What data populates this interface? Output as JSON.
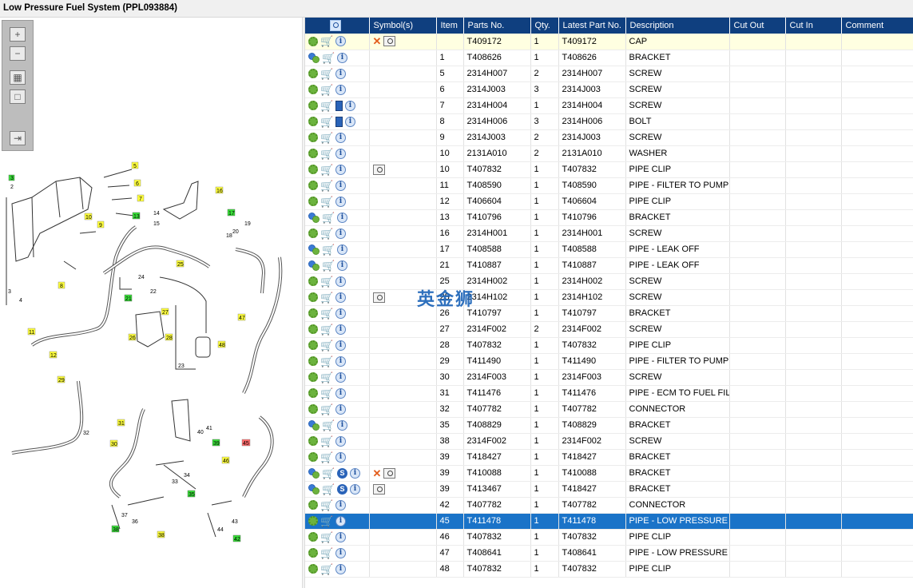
{
  "window": {
    "title": "Low Pressure Fuel System (PPL093884)"
  },
  "toolbar": {
    "icons": [
      "zoom-in-icon",
      "zoom-out-icon",
      "fit-all-icon",
      "fit-page-icon",
      "export-icon"
    ]
  },
  "watermark": {
    "text": "英金狮"
  },
  "diagram": {
    "callouts": [
      {
        "label": "3",
        "color": "green"
      },
      {
        "label": "2"
      },
      {
        "label": "3"
      },
      {
        "label": "4"
      },
      {
        "label": "5",
        "color": "yellow"
      },
      {
        "label": "6",
        "color": "yellow"
      },
      {
        "label": "7",
        "color": "yellow"
      },
      {
        "label": "8",
        "color": "yellow"
      },
      {
        "label": "9",
        "color": "yellow"
      },
      {
        "label": "10",
        "color": "yellow"
      },
      {
        "label": "11",
        "color": "yellow"
      },
      {
        "label": "12",
        "color": "yellow"
      },
      {
        "label": "13",
        "color": "green"
      },
      {
        "label": "14"
      },
      {
        "label": "15"
      },
      {
        "label": "16",
        "color": "yellow"
      },
      {
        "label": "17",
        "color": "green"
      },
      {
        "label": "18"
      },
      {
        "label": "19"
      },
      {
        "label": "20"
      },
      {
        "label": "21",
        "color": "green"
      },
      {
        "label": "22"
      },
      {
        "label": "23"
      },
      {
        "label": "24"
      },
      {
        "label": "25",
        "color": "yellow"
      },
      {
        "label": "26",
        "color": "yellow"
      },
      {
        "label": "27",
        "color": "yellow"
      },
      {
        "label": "28",
        "color": "yellow"
      },
      {
        "label": "29",
        "color": "yellow"
      },
      {
        "label": "30",
        "color": "yellow"
      },
      {
        "label": "31",
        "color": "yellow"
      },
      {
        "label": "32"
      },
      {
        "label": "33"
      },
      {
        "label": "34"
      },
      {
        "label": "35",
        "color": "green"
      },
      {
        "label": "36"
      },
      {
        "label": "37"
      },
      {
        "label": "38",
        "color": "yellow"
      },
      {
        "label": "39",
        "color": "green"
      },
      {
        "label": "40"
      },
      {
        "label": "41"
      },
      {
        "label": "42",
        "color": "green"
      },
      {
        "label": "43"
      },
      {
        "label": "44"
      },
      {
        "label": "45",
        "color": "red"
      },
      {
        "label": "46",
        "color": "yellow"
      },
      {
        "label": "47",
        "color": "yellow"
      },
      {
        "label": "48",
        "color": "yellow"
      },
      {
        "label": "38",
        "color": "green"
      }
    ]
  },
  "table": {
    "columns": [
      "",
      "Symbol(s)",
      "Item",
      "Parts No.",
      "Qty.",
      "Latest Part No.",
      "Description",
      "Cut Out",
      "Cut In",
      "Comment"
    ],
    "rows": [
      {
        "icons": [
          "gear",
          "cart",
          "info"
        ],
        "symbols": [
          "x",
          "mag"
        ],
        "item": "",
        "part": "T409172",
        "qty": "1",
        "latest": "T409172",
        "desc": "CAP",
        "state": "hl"
      },
      {
        "icons": [
          "gear2",
          "cart",
          "info"
        ],
        "symbols": [],
        "item": "1",
        "part": "T408626",
        "qty": "1",
        "latest": "T408626",
        "desc": "BRACKET"
      },
      {
        "icons": [
          "gear",
          "cart",
          "info"
        ],
        "symbols": [],
        "item": "5",
        "part": "2314H007",
        "qty": "2",
        "latest": "2314H007",
        "desc": "SCREW"
      },
      {
        "icons": [
          "gear",
          "cart",
          "info"
        ],
        "symbols": [],
        "item": "6",
        "part": "2314J003",
        "qty": "3",
        "latest": "2314J003",
        "desc": "SCREW"
      },
      {
        "icons": [
          "gear",
          "cart",
          "book",
          "info"
        ],
        "symbols": [],
        "item": "7",
        "part": "2314H004",
        "qty": "1",
        "latest": "2314H004",
        "desc": "SCREW"
      },
      {
        "icons": [
          "gear",
          "cart",
          "book",
          "info"
        ],
        "symbols": [],
        "item": "8",
        "part": "2314H006",
        "qty": "3",
        "latest": "2314H006",
        "desc": "BOLT"
      },
      {
        "icons": [
          "gear",
          "cart",
          "info"
        ],
        "symbols": [],
        "item": "9",
        "part": "2314J003",
        "qty": "2",
        "latest": "2314J003",
        "desc": "SCREW"
      },
      {
        "icons": [
          "gear",
          "cart",
          "info"
        ],
        "symbols": [],
        "item": "10",
        "part": "2131A010",
        "qty": "2",
        "latest": "2131A010",
        "desc": "WASHER"
      },
      {
        "icons": [
          "gear",
          "cart",
          "info"
        ],
        "symbols": [
          "mag"
        ],
        "item": "10",
        "part": "T407832",
        "qty": "1",
        "latest": "T407832",
        "desc": "PIPE CLIP"
      },
      {
        "icons": [
          "gear",
          "cart",
          "info"
        ],
        "symbols": [],
        "item": "11",
        "part": "T408590",
        "qty": "1",
        "latest": "T408590",
        "desc": "PIPE - FILTER TO PUMP"
      },
      {
        "icons": [
          "gear",
          "cart",
          "info"
        ],
        "symbols": [],
        "item": "12",
        "part": "T406604",
        "qty": "1",
        "latest": "T406604",
        "desc": "PIPE CLIP"
      },
      {
        "icons": [
          "gear2",
          "cart",
          "info"
        ],
        "symbols": [],
        "item": "13",
        "part": "T410796",
        "qty": "1",
        "latest": "T410796",
        "desc": "BRACKET"
      },
      {
        "icons": [
          "gear",
          "cart",
          "info"
        ],
        "symbols": [],
        "item": "16",
        "part": "2314H001",
        "qty": "1",
        "latest": "2314H001",
        "desc": "SCREW"
      },
      {
        "icons": [
          "gear2",
          "cart",
          "info"
        ],
        "symbols": [],
        "item": "17",
        "part": "T408588",
        "qty": "1",
        "latest": "T408588",
        "desc": "PIPE - LEAK OFF"
      },
      {
        "icons": [
          "gear2",
          "cart",
          "info"
        ],
        "symbols": [],
        "item": "21",
        "part": "T410887",
        "qty": "1",
        "latest": "T410887",
        "desc": "PIPE - LEAK OFF"
      },
      {
        "icons": [
          "gear",
          "cart",
          "info"
        ],
        "symbols": [],
        "item": "25",
        "part": "2314H002",
        "qty": "1",
        "latest": "2314H002",
        "desc": "SCREW"
      },
      {
        "icons": [
          "gear",
          "cart",
          "info"
        ],
        "symbols": [
          "mag"
        ],
        "item": "25",
        "part": "2314H102",
        "qty": "1",
        "latest": "2314H102",
        "desc": "SCREW"
      },
      {
        "icons": [
          "gear",
          "cart",
          "info"
        ],
        "symbols": [],
        "item": "26",
        "part": "T410797",
        "qty": "1",
        "latest": "T410797",
        "desc": "BRACKET"
      },
      {
        "icons": [
          "gear",
          "cart",
          "info"
        ],
        "symbols": [],
        "item": "27",
        "part": "2314F002",
        "qty": "2",
        "latest": "2314F002",
        "desc": "SCREW"
      },
      {
        "icons": [
          "gear",
          "cart",
          "info"
        ],
        "symbols": [],
        "item": "28",
        "part": "T407832",
        "qty": "1",
        "latest": "T407832",
        "desc": "PIPE CLIP"
      },
      {
        "icons": [
          "gear",
          "cart",
          "info"
        ],
        "symbols": [],
        "item": "29",
        "part": "T411490",
        "qty": "1",
        "latest": "T411490",
        "desc": "PIPE - FILTER TO PUMP"
      },
      {
        "icons": [
          "gear",
          "cart",
          "info"
        ],
        "symbols": [],
        "item": "30",
        "part": "2314F003",
        "qty": "1",
        "latest": "2314F003",
        "desc": "SCREW"
      },
      {
        "icons": [
          "gear",
          "cart",
          "info"
        ],
        "symbols": [],
        "item": "31",
        "part": "T411476",
        "qty": "1",
        "latest": "T411476",
        "desc": "PIPE - ECM TO FUEL FILTER"
      },
      {
        "icons": [
          "gear",
          "cart",
          "info"
        ],
        "symbols": [],
        "item": "32",
        "part": "T407782",
        "qty": "1",
        "latest": "T407782",
        "desc": "CONNECTOR"
      },
      {
        "icons": [
          "gear2",
          "cart",
          "info"
        ],
        "symbols": [],
        "item": "35",
        "part": "T408829",
        "qty": "1",
        "latest": "T408829",
        "desc": "BRACKET"
      },
      {
        "icons": [
          "gear",
          "cart",
          "info"
        ],
        "symbols": [],
        "item": "38",
        "part": "2314F002",
        "qty": "1",
        "latest": "2314F002",
        "desc": "SCREW"
      },
      {
        "icons": [
          "gear",
          "cart",
          "info"
        ],
        "symbols": [],
        "item": "39",
        "part": "T418427",
        "qty": "1",
        "latest": "T418427",
        "desc": "BRACKET"
      },
      {
        "icons": [
          "gear2",
          "cart",
          "s",
          "info"
        ],
        "symbols": [
          "x",
          "mag"
        ],
        "item": "39",
        "part": "T410088",
        "qty": "1",
        "latest": "T410088",
        "desc": "BRACKET"
      },
      {
        "icons": [
          "gear2",
          "cart",
          "s",
          "info"
        ],
        "symbols": [
          "mag"
        ],
        "item": "39",
        "part": "T413467",
        "qty": "1",
        "latest": "T418427",
        "desc": "BRACKET"
      },
      {
        "icons": [
          "gear",
          "cart",
          "info"
        ],
        "symbols": [],
        "item": "42",
        "part": "T407782",
        "qty": "1",
        "latest": "T407782",
        "desc": "CONNECTOR"
      },
      {
        "icons": [
          "gear",
          "cart",
          "info"
        ],
        "symbols": [],
        "item": "45",
        "part": "T411478",
        "qty": "1",
        "latest": "T411478",
        "desc": "PIPE - LOW PRESSURE FUEL",
        "state": "sel"
      },
      {
        "icons": [
          "gear",
          "cart",
          "info"
        ],
        "symbols": [],
        "item": "46",
        "part": "T407832",
        "qty": "1",
        "latest": "T407832",
        "desc": "PIPE CLIP"
      },
      {
        "icons": [
          "gear",
          "cart",
          "info"
        ],
        "symbols": [],
        "item": "47",
        "part": "T408641",
        "qty": "1",
        "latest": "T408641",
        "desc": "PIPE - LOW PRESSURE FUEL"
      },
      {
        "icons": [
          "gear",
          "cart",
          "info"
        ],
        "symbols": [],
        "item": "48",
        "part": "T407832",
        "qty": "1",
        "latest": "T407832",
        "desc": "PIPE CLIP"
      }
    ]
  },
  "colors": {
    "header_bg": "#0f3f7f",
    "selected_row": "#1a73c8",
    "highlight_row": "#ffffe1",
    "callout_yellow": "#ffff3c",
    "callout_green": "#39e039",
    "callout_red": "#ff6b6b"
  }
}
